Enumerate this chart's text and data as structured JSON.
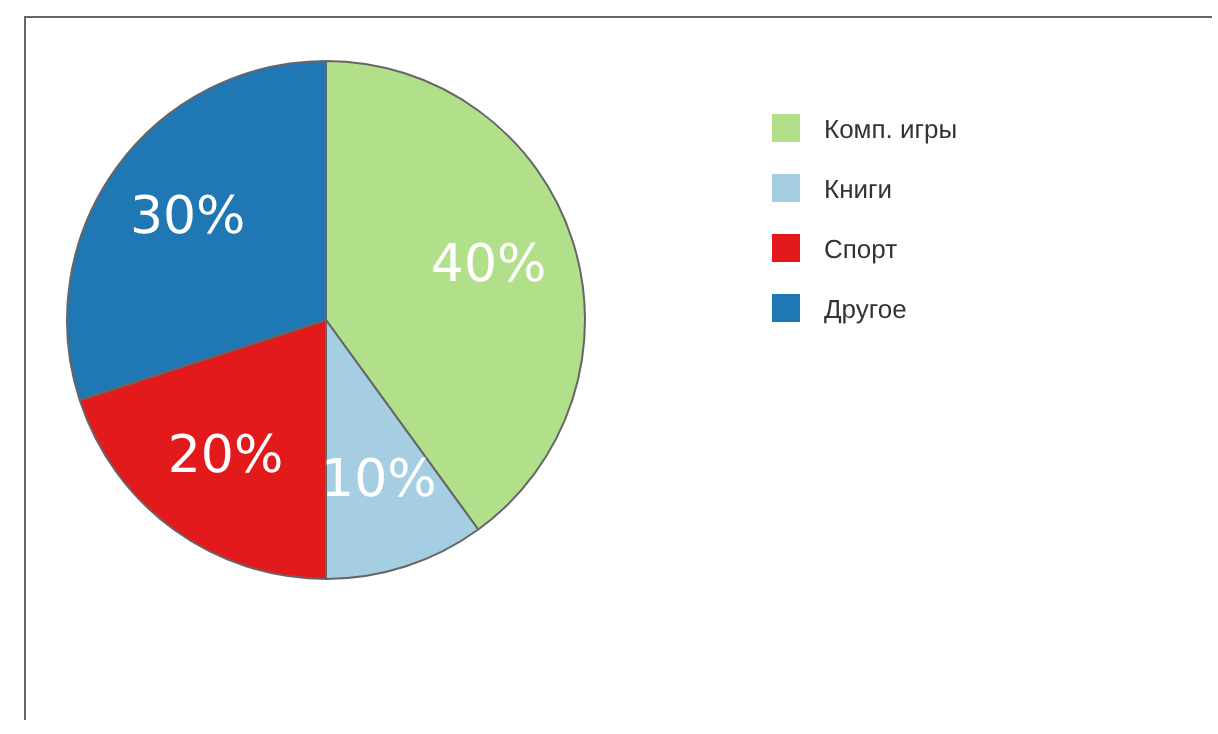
{
  "chart_data": {
    "type": "pie",
    "categories": [
      "Комп. игры",
      "Книги",
      "Спорт",
      "Другое"
    ],
    "values": [
      40,
      10,
      20,
      30
    ],
    "colors": [
      "#b2df8a",
      "#a6cee3",
      "#e31a1c",
      "#1f78b4"
    ],
    "value_labels": [
      "40%",
      "10%",
      "20%",
      "30%"
    ],
    "legend": "top right"
  }
}
